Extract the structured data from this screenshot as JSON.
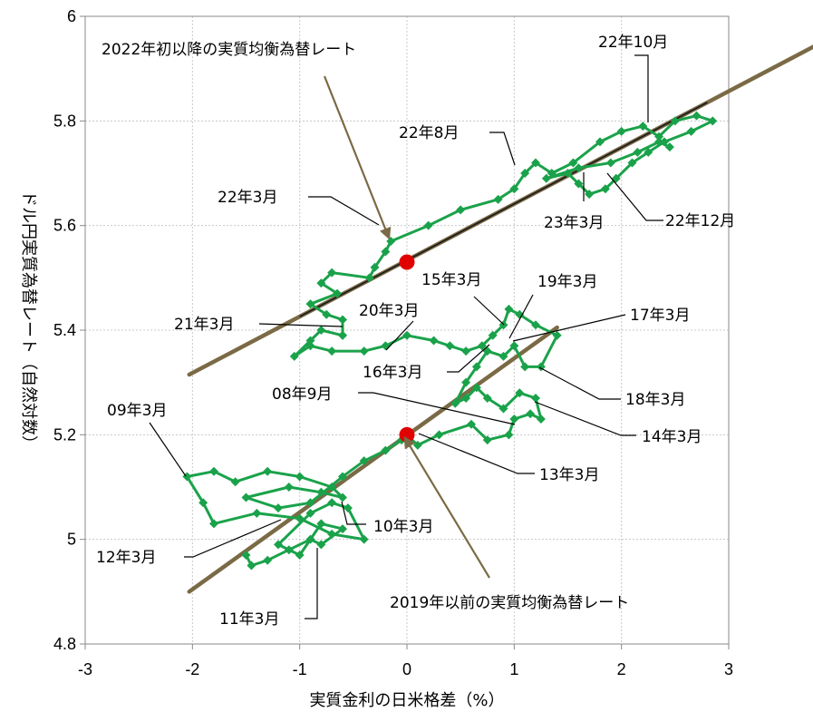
{
  "chart_data": {
    "type": "scatter",
    "xlabel": "実質金利の日米格差（%）",
    "ylabel": "ドル円実質為替レート（自然対数）",
    "xlim": [
      -3,
      3
    ],
    "ylim": [
      4.8,
      6
    ],
    "x_ticks": [
      "-3",
      "-2",
      "-1",
      "0",
      "1",
      "2",
      "3"
    ],
    "y_ticks": [
      "4.8",
      "5",
      "5.2",
      "5.4",
      "5.6",
      "5.8",
      "6"
    ],
    "grid": true,
    "colors": {
      "series": "#1aa24a",
      "fit_line": "#7a6a45",
      "marker": "#e00000"
    },
    "series": [
      {
        "segment": "pre-2019",
        "points": [
          [
            -1.5,
            4.97
          ],
          [
            -1.45,
            4.95
          ],
          [
            -1.3,
            4.96
          ],
          [
            -1.1,
            4.98
          ],
          [
            -0.9,
            5.0
          ],
          [
            -0.8,
            4.99
          ],
          [
            -0.6,
            5.02
          ],
          [
            -0.8,
            5.03
          ],
          [
            -1.0,
            4.97
          ],
          [
            -1.2,
            4.99
          ],
          [
            -0.9,
            5.05
          ],
          [
            -0.7,
            5.07
          ],
          [
            -0.55,
            5.06
          ],
          [
            -0.4,
            5.0
          ],
          [
            -0.7,
            5.01
          ],
          [
            -1.0,
            5.04
          ],
          [
            -1.4,
            5.05
          ],
          [
            -1.8,
            5.03
          ],
          [
            -1.9,
            5.07
          ],
          [
            -2.05,
            5.12
          ],
          [
            -1.8,
            5.13
          ],
          [
            -1.6,
            5.11
          ],
          [
            -1.3,
            5.13
          ],
          [
            -1.0,
            5.12
          ],
          [
            -0.7,
            5.1
          ],
          [
            -0.6,
            5.08
          ],
          [
            -0.8,
            5.09
          ],
          [
            -1.1,
            5.1
          ],
          [
            -1.5,
            5.08
          ],
          [
            -1.2,
            5.06
          ],
          [
            -0.9,
            5.07
          ],
          [
            -0.6,
            5.12
          ],
          [
            -0.4,
            5.15
          ],
          [
            -0.2,
            5.17
          ],
          [
            -0.05,
            5.19
          ],
          [
            0.0,
            5.2
          ],
          [
            0.1,
            5.18
          ],
          [
            0.3,
            5.2
          ],
          [
            0.6,
            5.22
          ],
          [
            0.75,
            5.19
          ],
          [
            0.95,
            5.2
          ],
          [
            1.0,
            5.23
          ],
          [
            1.15,
            5.24
          ],
          [
            1.25,
            5.23
          ],
          [
            1.2,
            5.27
          ],
          [
            1.05,
            5.28
          ],
          [
            0.9,
            5.25
          ],
          [
            0.75,
            5.27
          ],
          [
            0.65,
            5.29
          ],
          [
            0.55,
            5.27
          ],
          [
            0.45,
            5.26
          ],
          [
            0.55,
            5.3
          ],
          [
            0.65,
            5.33
          ],
          [
            0.75,
            5.36
          ],
          [
            0.9,
            5.35
          ],
          [
            1.0,
            5.37
          ],
          [
            1.1,
            5.33
          ],
          [
            1.25,
            5.33
          ],
          [
            1.4,
            5.39
          ],
          [
            1.2,
            5.41
          ],
          [
            1.05,
            5.43
          ],
          [
            0.95,
            5.44
          ],
          [
            0.9,
            5.41
          ],
          [
            0.8,
            5.39
          ],
          [
            0.7,
            5.37
          ],
          [
            0.55,
            5.36
          ],
          [
            0.4,
            5.37
          ],
          [
            0.25,
            5.38
          ],
          [
            0.0,
            5.39
          ],
          [
            -0.2,
            5.37
          ],
          [
            -0.4,
            5.36
          ],
          [
            -0.7,
            5.36
          ],
          [
            -0.9,
            5.37
          ],
          [
            -1.05,
            5.35
          ],
          [
            -0.9,
            5.38
          ],
          [
            -0.8,
            5.4
          ],
          [
            -0.6,
            5.39
          ]
        ]
      },
      {
        "segment": "2022-",
        "points": [
          [
            -0.6,
            5.39
          ],
          [
            -0.6,
            5.42
          ],
          [
            -0.75,
            5.43
          ],
          [
            -0.9,
            5.45
          ],
          [
            -0.65,
            5.47
          ],
          [
            -0.8,
            5.49
          ],
          [
            -0.7,
            5.51
          ],
          [
            -0.35,
            5.5
          ],
          [
            -0.3,
            5.52
          ],
          [
            -0.2,
            5.55
          ],
          [
            -0.15,
            5.57
          ],
          [
            0.2,
            5.6
          ],
          [
            0.5,
            5.63
          ],
          [
            0.85,
            5.65
          ],
          [
            1.0,
            5.67
          ],
          [
            1.1,
            5.7
          ],
          [
            1.2,
            5.72
          ],
          [
            1.35,
            5.7
          ],
          [
            1.55,
            5.72
          ],
          [
            1.8,
            5.76
          ],
          [
            2.0,
            5.78
          ],
          [
            2.2,
            5.79
          ],
          [
            2.35,
            5.77
          ],
          [
            2.5,
            5.8
          ],
          [
            2.7,
            5.81
          ],
          [
            2.85,
            5.8
          ],
          [
            2.65,
            5.78
          ],
          [
            2.4,
            5.76
          ],
          [
            2.25,
            5.74
          ],
          [
            2.1,
            5.72
          ],
          [
            1.95,
            5.69
          ],
          [
            1.85,
            5.67
          ],
          [
            1.7,
            5.66
          ],
          [
            1.6,
            5.68
          ],
          [
            1.5,
            5.7
          ],
          [
            1.3,
            5.69
          ],
          [
            1.6,
            5.71
          ],
          [
            1.9,
            5.72
          ],
          [
            2.15,
            5.74
          ],
          [
            2.35,
            5.76
          ],
          [
            2.45,
            5.75
          ]
        ]
      }
    ],
    "fit_lines": [
      {
        "label": "2019年以前の実質均衡為替レート",
        "x": [
          -2.03,
          1.4
        ],
        "y": [
          4.9,
          5.405
        ]
      },
      {
        "label": "2022年初以降の実質均衡為替レート",
        "x": [
          -2.03,
          3.8
        ],
        "y": [
          5.315,
          5.943
        ]
      }
    ],
    "red_markers": [
      [
        0.0,
        5.2
      ],
      [
        0.0,
        5.53
      ]
    ],
    "annotations": [
      {
        "text": "22年10月",
        "x": 2.25,
        "y": 5.79
      },
      {
        "text": "22年8月",
        "x": 1.0,
        "y": 5.71
      },
      {
        "text": "22年3月",
        "x": -0.15,
        "y": 5.57
      },
      {
        "text": "23年3月",
        "x": 1.65,
        "y": 5.67
      },
      {
        "text": "22年12月",
        "x": 1.85,
        "y": 5.68
      },
      {
        "text": "15年3月",
        "x": 0.95,
        "y": 5.39
      },
      {
        "text": "19年3月",
        "x": 0.95,
        "y": 5.38
      },
      {
        "text": "17年3月",
        "x": 1.0,
        "y": 5.37
      },
      {
        "text": "20年3月",
        "x": -0.25,
        "y": 5.37
      },
      {
        "text": "21年3月",
        "x": -0.6,
        "y": 5.395
      },
      {
        "text": "16年3月",
        "x": 0.8,
        "y": 5.36
      },
      {
        "text": "18年3月",
        "x": 1.2,
        "y": 5.33
      },
      {
        "text": "08年9月",
        "x": -0.05,
        "y": 5.2
      },
      {
        "text": "14年3月",
        "x": 1.15,
        "y": 5.27
      },
      {
        "text": "09年3月",
        "x": -2.05,
        "y": 5.12
      },
      {
        "text": "13年3月",
        "x": 0.1,
        "y": 5.2
      },
      {
        "text": "10年3月",
        "x": -0.6,
        "y": 5.06
      },
      {
        "text": "12年3月",
        "x": -0.95,
        "y": 5.03
      },
      {
        "text": "11年3月",
        "x": -0.8,
        "y": 4.99
      },
      {
        "text": "2022年初以降の実質均衡為替レート"
      },
      {
        "text": "2019年以前の実質均衡為替レート"
      }
    ]
  }
}
